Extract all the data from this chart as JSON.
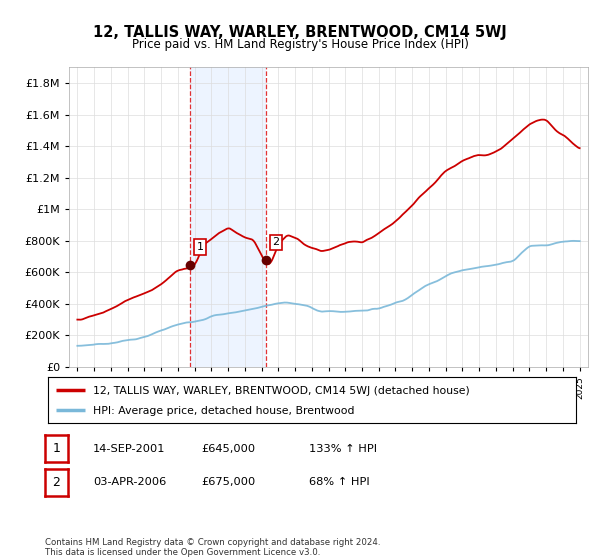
{
  "title": "12, TALLIS WAY, WARLEY, BRENTWOOD, CM14 5WJ",
  "subtitle": "Price paid vs. HM Land Registry's House Price Index (HPI)",
  "legend_line1": "12, TALLIS WAY, WARLEY, BRENTWOOD, CM14 5WJ (detached house)",
  "legend_line2": "HPI: Average price, detached house, Brentwood",
  "transaction1_label": "1",
  "transaction1_date": "14-SEP-2001",
  "transaction1_price": "£645,000",
  "transaction1_hpi": "133% ↑ HPI",
  "transaction2_label": "2",
  "transaction2_date": "03-APR-2006",
  "transaction2_price": "£675,000",
  "transaction2_hpi": "68% ↑ HPI",
  "footer": "Contains HM Land Registry data © Crown copyright and database right 2024.\nThis data is licensed under the Open Government Licence v3.0.",
  "hpi_color": "#7ab8d9",
  "price_color": "#cc0000",
  "marker_color": "#660000",
  "shade_color": "#cce0ff",
  "transaction1_x": 2001.72,
  "transaction2_x": 2006.25,
  "ylim_max": 1900000,
  "xlim_min": 1994.5,
  "xlim_max": 2025.5
}
